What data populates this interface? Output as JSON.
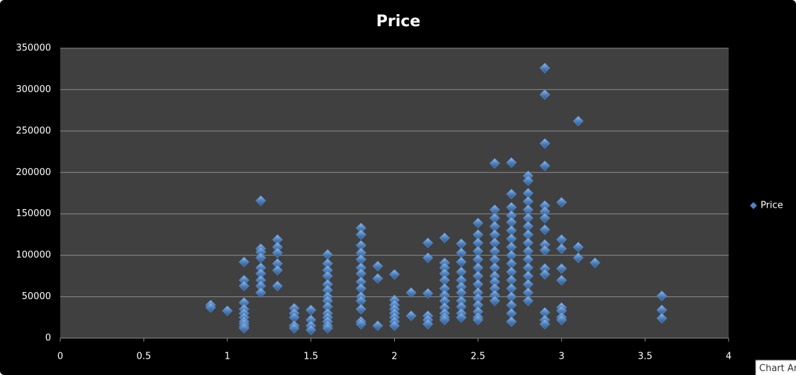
{
  "chart_data": {
    "type": "scatter",
    "title": "Price",
    "series": [
      {
        "name": "Price",
        "color": "#4f81bd",
        "x": [
          0.9,
          0.9,
          1.0,
          1.1,
          1.1,
          1.1,
          1.1,
          1.1,
          1.1,
          1.1,
          1.1,
          1.1,
          1.1,
          1.1,
          1.2,
          1.2,
          1.2,
          1.2,
          1.2,
          1.2,
          1.2,
          1.2,
          1.2,
          1.3,
          1.3,
          1.3,
          1.3,
          1.3,
          1.3,
          1.4,
          1.4,
          1.4,
          1.4,
          1.4,
          1.5,
          1.5,
          1.5,
          1.5,
          1.6,
          1.6,
          1.6,
          1.6,
          1.6,
          1.6,
          1.6,
          1.6,
          1.6,
          1.6,
          1.6,
          1.6,
          1.6,
          1.6,
          1.8,
          1.8,
          1.8,
          1.8,
          1.8,
          1.8,
          1.8,
          1.8,
          1.8,
          1.8,
          1.8,
          1.8,
          1.8,
          1.8,
          1.9,
          1.9,
          1.9,
          2.0,
          2.0,
          2.0,
          2.0,
          2.0,
          2.0,
          2.0,
          2.0,
          2.1,
          2.1,
          2.2,
          2.2,
          2.2,
          2.2,
          2.2,
          2.2,
          2.3,
          2.3,
          2.3,
          2.3,
          2.3,
          2.3,
          2.3,
          2.3,
          2.3,
          2.3,
          2.3,
          2.3,
          2.4,
          2.4,
          2.4,
          2.4,
          2.4,
          2.4,
          2.4,
          2.4,
          2.4,
          2.4,
          2.4,
          2.5,
          2.5,
          2.5,
          2.5,
          2.5,
          2.5,
          2.5,
          2.5,
          2.5,
          2.5,
          2.5,
          2.5,
          2.5,
          2.5,
          2.6,
          2.6,
          2.6,
          2.6,
          2.6,
          2.6,
          2.6,
          2.6,
          2.6,
          2.6,
          2.6,
          2.6,
          2.6,
          2.6,
          2.7,
          2.7,
          2.7,
          2.7,
          2.7,
          2.7,
          2.7,
          2.7,
          2.7,
          2.7,
          2.7,
          2.7,
          2.7,
          2.7,
          2.7,
          2.7,
          2.7,
          2.8,
          2.8,
          2.8,
          2.8,
          2.8,
          2.8,
          2.8,
          2.8,
          2.8,
          2.8,
          2.8,
          2.8,
          2.8,
          2.8,
          2.8,
          2.8,
          2.9,
          2.9,
          2.9,
          2.9,
          2.9,
          2.9,
          2.9,
          2.9,
          2.9,
          2.9,
          2.9,
          2.9,
          2.9,
          2.9,
          2.9,
          3.0,
          3.0,
          3.0,
          3.0,
          3.0,
          3.0,
          3.0,
          3.0,
          3.0,
          3.1,
          3.1,
          3.1,
          3.2,
          3.6,
          3.6,
          3.6
        ],
        "values": [
          40000,
          37000,
          33000,
          92000,
          70000,
          63000,
          43000,
          35000,
          30000,
          25000,
          20000,
          17000,
          14000,
          12000,
          166000,
          108000,
          104000,
          97000,
          85000,
          78000,
          70000,
          63000,
          55000,
          119000,
          110000,
          103000,
          90000,
          82000,
          63000,
          36000,
          30000,
          25000,
          15000,
          12000,
          34000,
          22000,
          15000,
          10000,
          101000,
          90000,
          82000,
          75000,
          65000,
          58000,
          50000,
          45000,
          38000,
          30000,
          25000,
          20000,
          15000,
          12000,
          133000,
          125000,
          112000,
          103000,
          95000,
          85000,
          78000,
          68000,
          60000,
          50000,
          45000,
          35000,
          20000,
          17000,
          87000,
          72000,
          15000,
          77000,
          46000,
          40000,
          35000,
          30000,
          25000,
          20000,
          15000,
          55000,
          27000,
          115000,
          97000,
          54000,
          27000,
          22000,
          17000,
          121000,
          91000,
          85000,
          78000,
          70000,
          60000,
          52000,
          45000,
          37000,
          30000,
          25000,
          22000,
          114000,
          103000,
          92000,
          80000,
          70000,
          62000,
          55000,
          45000,
          38000,
          30000,
          25000,
          139000,
          125000,
          115000,
          105000,
          95000,
          85000,
          75000,
          65000,
          55000,
          48000,
          40000,
          32000,
          25000,
          22000,
          211000,
          155000,
          145000,
          135000,
          125000,
          115000,
          105000,
          95000,
          85000,
          75000,
          68000,
          60000,
          52000,
          45000,
          212000,
          174000,
          158000,
          148000,
          140000,
          130000,
          120000,
          110000,
          100000,
          90000,
          80000,
          70000,
          60000,
          50000,
          40000,
          30000,
          20000,
          196000,
          190000,
          175000,
          165000,
          155000,
          145000,
          135000,
          125000,
          115000,
          105000,
          95000,
          85000,
          75000,
          65000,
          55000,
          45000,
          326000,
          294000,
          235000,
          208000,
          160000,
          153000,
          145000,
          131000,
          113000,
          106000,
          84000,
          77000,
          31000,
          22000,
          17000,
          164000,
          119000,
          108000,
          84000,
          70000,
          37000,
          33000,
          25000,
          22000,
          262000,
          110000,
          97000,
          91000,
          51000,
          34000,
          24000
        ]
      }
    ],
    "xlim": [
      0,
      4
    ],
    "xticks": [
      0,
      0.5,
      1,
      1.5,
      2,
      2.5,
      3,
      3.5,
      4
    ],
    "ylim": [
      0,
      350000
    ],
    "yticks": [
      0,
      50000,
      100000,
      150000,
      200000,
      250000,
      300000,
      350000
    ],
    "grid": true,
    "legend": "right",
    "tooltip": "Chart Ar"
  }
}
